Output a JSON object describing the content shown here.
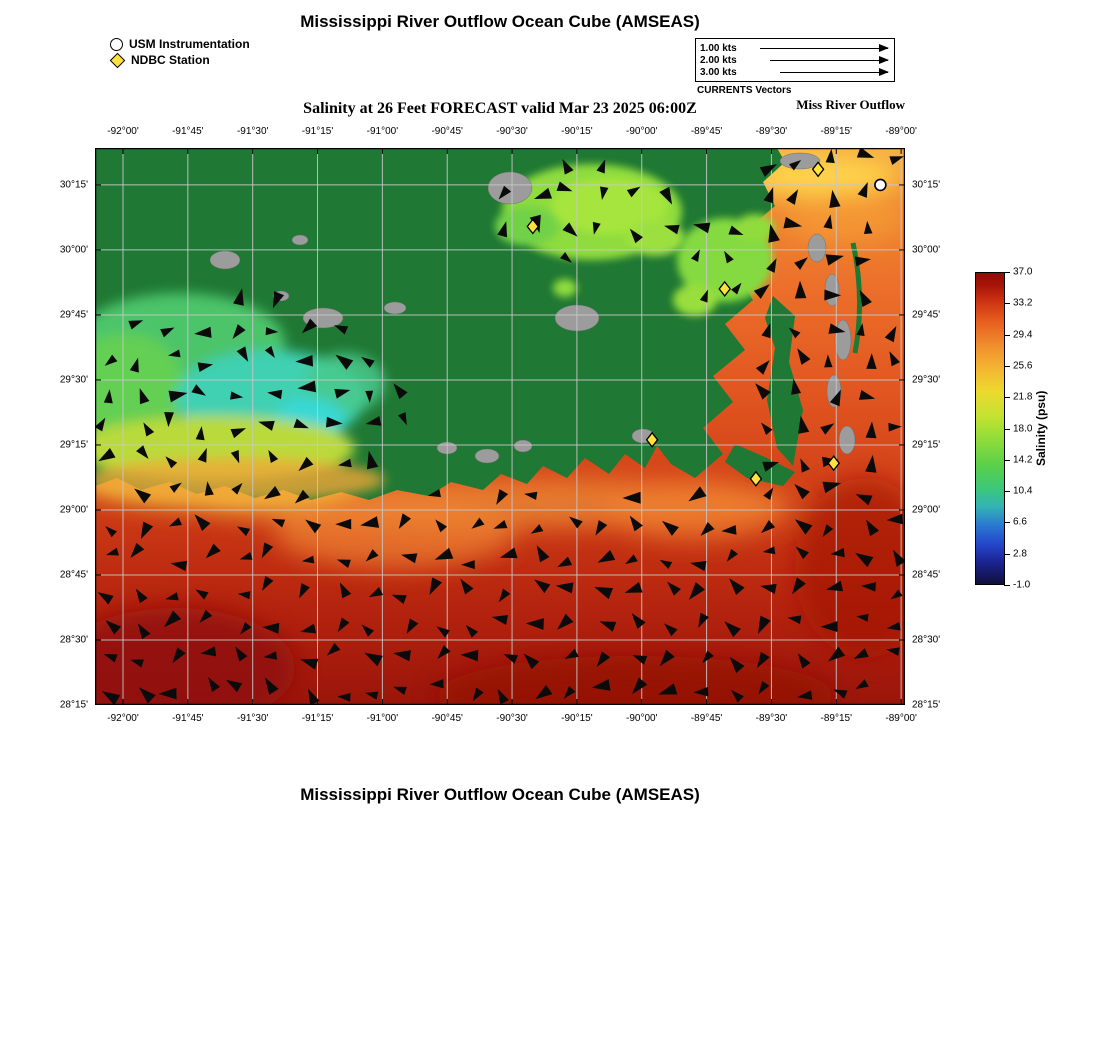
{
  "page": {
    "title_top": "Mississippi River Outflow Ocean Cube (AMSEAS)",
    "subtitle": "Salinity at 26 Feet FORECAST valid Mar 23 2025 06:00Z",
    "title_bottom": "Mississippi River Outflow Ocean Cube (AMSEAS)"
  },
  "legend": {
    "usm_label": "USM Instrumentation",
    "ndbc_label": "NDBC Station"
  },
  "vector_legend": {
    "rows": [
      {
        "label": "1.00 kts"
      },
      {
        "label": "2.00 kts"
      },
      {
        "label": "3.00 kts"
      }
    ],
    "caption": "CURRENTS Vectors",
    "annotation": "Miss River Outflow"
  },
  "axes": {
    "x_ticks": [
      "-92°00'",
      "-91°45'",
      "-91°30'",
      "-91°15'",
      "-91°00'",
      "-90°45'",
      "-90°30'",
      "-90°15'",
      "-90°00'",
      "-89°45'",
      "-89°30'",
      "-89°15'",
      "-89°00'"
    ],
    "y_ticks": [
      "30°15'",
      "30°00'",
      "29°45'",
      "29°30'",
      "29°15'",
      "29°00'",
      "28°45'",
      "28°30'",
      "28°15'"
    ]
  },
  "colorbar": {
    "label": "Salinity (psu)",
    "ticks": [
      "37.0",
      "33.2",
      "29.4",
      "25.6",
      "21.8",
      "18.0",
      "14.2",
      "10.4",
      "6.6",
      "2.8",
      "-1.0"
    ]
  },
  "chart_data": {
    "type": "heatmap",
    "title": "Salinity at 26 Feet FORECAST valid Mar 23 2025 06:00Z",
    "model": "Mississippi River Outflow Ocean Cube (AMSEAS)",
    "variable": "Salinity",
    "units": "psu",
    "depth": "26 Feet",
    "valid_time": "Mar 23 2025 06:00Z",
    "extent": {
      "lon_min": -92.108,
      "lon_max": -88.985,
      "lat_min": 28.25,
      "lat_max": 30.392
    },
    "colorbar_range": [
      -1.0,
      37.0
    ],
    "grid": true,
    "axes": {
      "x_values": [
        -92.0,
        -91.75,
        -91.5,
        -91.25,
        -91.0,
        -90.75,
        -90.5,
        -90.25,
        -90.0,
        -89.75,
        -89.5,
        -89.25,
        -89.0
      ],
      "y_values": [
        30.25,
        30.0,
        29.75,
        29.5,
        29.25,
        29.0,
        28.75,
        28.5,
        28.25
      ]
    },
    "vector_legend_kts": [
      1.0,
      2.0,
      3.0
    ],
    "stations": {
      "usm": [
        {
          "lon": -89.08,
          "lat": 30.25
        }
      ],
      "ndbc": [
        {
          "lon": -90.42,
          "lat": 30.09
        },
        {
          "lon": -89.68,
          "lat": 29.85
        },
        {
          "lon": -89.32,
          "lat": 30.31
        },
        {
          "lon": -89.96,
          "lat": 29.27
        },
        {
          "lon": -89.26,
          "lat": 29.18
        },
        {
          "lon": -89.56,
          "lat": 29.12
        }
      ]
    },
    "regions": [
      {
        "name": "offshore-gulf",
        "approx_psu": 33
      },
      {
        "name": "coastal-band",
        "approx_psu": 28
      },
      {
        "name": "atchafalaya-vermilion-plume",
        "approx_psu": 14
      },
      {
        "name": "lake-pontchartrain",
        "approx_psu": 19
      },
      {
        "name": "eastern-sound",
        "approx_psu": 24
      },
      {
        "name": "land",
        "color": "#1f7833"
      },
      {
        "name": "no-data-land",
        "color": "#9c9c9c"
      }
    ]
  }
}
